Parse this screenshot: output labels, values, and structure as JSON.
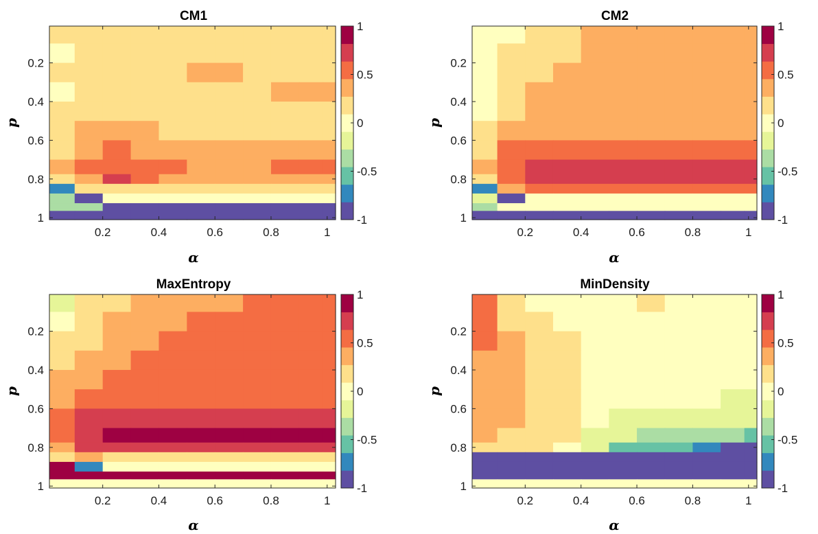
{
  "chart_data": [
    {
      "type": "heatmap",
      "title": "CM1",
      "xlabel": "α",
      "ylabel": "p",
      "xlim": [
        0.01,
        1.03
      ],
      "ylim": [
        0.01,
        1.01
      ],
      "y_reversed": true,
      "xticks": [
        0.2,
        0.4,
        0.6,
        0.8,
        1
      ],
      "xtick_labels": [
        "0.2",
        "0.4",
        "0.6",
        "0.8",
        "1"
      ],
      "yticks": [
        0.2,
        0.4,
        0.6,
        0.8,
        1
      ],
      "ytick_labels": [
        "0.2",
        "0.4",
        "0.6",
        "0.8",
        "1"
      ],
      "colorbar": {
        "range": [
          -1,
          1
        ],
        "ticks": [
          -1,
          -0.5,
          0,
          0.5,
          1
        ],
        "tick_labels": [
          "-1",
          "-0.5",
          "0",
          "0.5",
          "1"
        ]
      },
      "x": [
        0.05,
        0.15,
        0.25,
        0.35,
        0.45,
        0.55,
        0.65,
        0.75,
        0.85,
        0.95,
        1.02
      ],
      "y": [
        0.05,
        0.15,
        0.25,
        0.35,
        0.45,
        0.55,
        0.65,
        0.75,
        0.8,
        0.85,
        0.9,
        0.95,
        0.98
      ],
      "z": [
        [
          0.1,
          0.15,
          0.25,
          0.25,
          0.25,
          0.25,
          0.25,
          0.25,
          0.25,
          0.25,
          0.25
        ],
        [
          0.05,
          0.15,
          0.25,
          0.25,
          0.25,
          0.25,
          0.25,
          0.25,
          0.25,
          0.25,
          0.25
        ],
        [
          0.1,
          0.2,
          0.25,
          0.25,
          0.25,
          0.35,
          0.35,
          0.25,
          0.25,
          0.25,
          0.25
        ],
        [
          0.05,
          0.2,
          0.25,
          0.25,
          0.25,
          0.25,
          0.25,
          0.25,
          0.35,
          0.35,
          0.35
        ],
        [
          0.1,
          0.25,
          0.25,
          0.25,
          0.25,
          0.25,
          0.25,
          0.25,
          0.25,
          0.25,
          0.25
        ],
        [
          0.15,
          0.35,
          0.35,
          0.35,
          0.25,
          0.25,
          0.25,
          0.25,
          0.25,
          0.25,
          0.25
        ],
        [
          0.25,
          0.45,
          0.55,
          0.45,
          0.45,
          0.45,
          0.45,
          0.35,
          0.35,
          0.35,
          0.35
        ],
        [
          0.35,
          0.55,
          0.6,
          0.55,
          0.55,
          0.45,
          0.45,
          0.45,
          0.55,
          0.55,
          0.55
        ],
        [
          0.25,
          0.45,
          0.75,
          0.55,
          0.45,
          0.45,
          0.45,
          0.45,
          0.45,
          0.45,
          0.45
        ],
        [
          -0.65,
          0.25,
          0.25,
          0.25,
          0.25,
          0.25,
          0.25,
          0.25,
          0.25,
          0.25,
          0.25
        ],
        [
          -0.35,
          -0.85,
          0.05,
          0.05,
          0.05,
          0.05,
          0.05,
          0.05,
          0.05,
          0.05,
          0.05
        ],
        [
          -0.45,
          -0.35,
          -0.85,
          -0.85,
          -0.85,
          -0.85,
          -0.85,
          -0.85,
          -0.85,
          -0.85,
          -0.85
        ],
        [
          -0.85,
          -0.85,
          -0.85,
          -0.85,
          -0.85,
          -0.85,
          -0.85,
          -0.85,
          -0.85,
          -0.85,
          -0.85
        ]
      ]
    },
    {
      "type": "heatmap",
      "title": "CM2",
      "xlabel": "α",
      "ylabel": "p",
      "xlim": [
        0.01,
        1.03
      ],
      "ylim": [
        0.01,
        1.01
      ],
      "y_reversed": true,
      "xticks": [
        0.2,
        0.4,
        0.6,
        0.8,
        1
      ],
      "xtick_labels": [
        "0.2",
        "0.4",
        "0.6",
        "0.8",
        "1"
      ],
      "yticks": [
        0.2,
        0.4,
        0.6,
        0.8,
        1
      ],
      "ytick_labels": [
        "0.2",
        "0.4",
        "0.6",
        "0.8",
        "1"
      ],
      "colorbar": {
        "range": [
          -1,
          1
        ],
        "ticks": [
          -1,
          -0.5,
          0,
          0.5,
          1
        ],
        "tick_labels": [
          "-1",
          "-0.5",
          "0",
          "0.5",
          "1"
        ]
      },
      "x": [
        0.05,
        0.15,
        0.25,
        0.35,
        0.45,
        0.55,
        0.65,
        0.75,
        0.85,
        0.95,
        1.02
      ],
      "y": [
        0.05,
        0.15,
        0.25,
        0.35,
        0.45,
        0.55,
        0.65,
        0.75,
        0.8,
        0.85,
        0.9,
        0.95,
        0.98
      ],
      "z": [
        [
          -0.05,
          0.05,
          0.25,
          0.25,
          0.35,
          0.35,
          0.35,
          0.35,
          0.35,
          0.35,
          0.35
        ],
        [
          0.05,
          0.15,
          0.25,
          0.25,
          0.35,
          0.35,
          0.35,
          0.35,
          0.35,
          0.35,
          0.35
        ],
        [
          0.05,
          0.15,
          0.25,
          0.35,
          0.35,
          0.35,
          0.35,
          0.35,
          0.35,
          0.35,
          0.35
        ],
        [
          0.05,
          0.25,
          0.35,
          0.35,
          0.35,
          0.35,
          0.35,
          0.35,
          0.35,
          0.35,
          0.35
        ],
        [
          0.05,
          0.25,
          0.35,
          0.35,
          0.35,
          0.35,
          0.35,
          0.35,
          0.35,
          0.35,
          0.35
        ],
        [
          0.15,
          0.45,
          0.45,
          0.35,
          0.35,
          0.35,
          0.35,
          0.35,
          0.35,
          0.35,
          0.35
        ],
        [
          0.25,
          0.55,
          0.55,
          0.55,
          0.55,
          0.55,
          0.55,
          0.55,
          0.55,
          0.55,
          0.55
        ],
        [
          0.35,
          0.55,
          0.75,
          0.75,
          0.65,
          0.65,
          0.65,
          0.65,
          0.65,
          0.65,
          0.65
        ],
        [
          0.25,
          0.55,
          0.75,
          0.75,
          0.75,
          0.75,
          0.75,
          0.75,
          0.75,
          0.75,
          0.75
        ],
        [
          -0.75,
          0.45,
          0.55,
          0.55,
          0.55,
          0.55,
          0.55,
          0.55,
          0.55,
          0.55,
          0.55
        ],
        [
          -0.25,
          -0.85,
          0.05,
          0.05,
          0.05,
          0.05,
          0.05,
          0.05,
          0.05,
          0.05,
          0.05
        ],
        [
          -0.35,
          0.05,
          0.05,
          0.05,
          0.05,
          0.05,
          0.05,
          0.05,
          0.05,
          0.05,
          0.05
        ],
        [
          -0.85,
          -0.85,
          -0.85,
          -0.85,
          -0.85,
          -0.85,
          -0.85,
          -0.85,
          -0.85,
          -0.85,
          -0.85
        ]
      ]
    },
    {
      "type": "heatmap",
      "title": "MaxEntropy",
      "xlabel": "α",
      "ylabel": "p",
      "xlim": [
        0.01,
        1.03
      ],
      "ylim": [
        0.01,
        1.01
      ],
      "y_reversed": true,
      "xticks": [
        0.2,
        0.4,
        0.6,
        0.8,
        1
      ],
      "xtick_labels": [
        "0.2",
        "0.4",
        "0.6",
        "0.8",
        "1"
      ],
      "yticks": [
        0.2,
        0.4,
        0.6,
        0.8,
        1
      ],
      "ytick_labels": [
        "0.2",
        "0.4",
        "0.6",
        "0.8",
        "1"
      ],
      "colorbar": {
        "range": [
          -1,
          1
        ],
        "ticks": [
          -1,
          -0.5,
          0,
          0.5,
          1
        ],
        "tick_labels": [
          "-1",
          "-0.5",
          "0",
          "0.5",
          "1"
        ]
      },
      "x": [
        0.05,
        0.15,
        0.25,
        0.35,
        0.45,
        0.55,
        0.65,
        0.75,
        0.85,
        0.95,
        1.02
      ],
      "y": [
        0.05,
        0.15,
        0.25,
        0.35,
        0.45,
        0.55,
        0.65,
        0.75,
        0.8,
        0.85,
        0.9,
        0.95,
        0.98
      ],
      "z": [
        [
          -0.15,
          0.15,
          0.25,
          0.35,
          0.35,
          0.35,
          0.45,
          0.55,
          0.55,
          0.55,
          0.55
        ],
        [
          0.05,
          0.25,
          0.35,
          0.35,
          0.45,
          0.55,
          0.55,
          0.55,
          0.55,
          0.55,
          0.55
        ],
        [
          0.15,
          0.25,
          0.35,
          0.45,
          0.55,
          0.55,
          0.55,
          0.55,
          0.55,
          0.55,
          0.55
        ],
        [
          0.25,
          0.35,
          0.45,
          0.55,
          0.55,
          0.55,
          0.55,
          0.55,
          0.55,
          0.55,
          0.55
        ],
        [
          0.35,
          0.45,
          0.55,
          0.55,
          0.55,
          0.55,
          0.55,
          0.55,
          0.55,
          0.55,
          0.55
        ],
        [
          0.45,
          0.55,
          0.55,
          0.55,
          0.55,
          0.55,
          0.55,
          0.55,
          0.55,
          0.55,
          0.55
        ],
        [
          0.55,
          0.65,
          0.75,
          0.75,
          0.75,
          0.75,
          0.75,
          0.75,
          0.75,
          0.75,
          0.75
        ],
        [
          0.55,
          0.75,
          0.95,
          0.95,
          0.95,
          0.95,
          0.95,
          0.95,
          0.95,
          0.95,
          0.95
        ],
        [
          0.45,
          0.75,
          0.75,
          0.75,
          0.75,
          0.75,
          0.75,
          0.75,
          0.75,
          0.75,
          0.75
        ],
        [
          0.25,
          0.35,
          0.25,
          0.25,
          0.25,
          0.25,
          0.25,
          0.25,
          0.25,
          0.25,
          0.25
        ],
        [
          0.95,
          -0.75,
          0.05,
          0.05,
          0.05,
          0.05,
          0.05,
          0.05,
          0.05,
          0.05,
          0.05
        ],
        [
          0.95,
          0.95,
          0.95,
          0.95,
          0.95,
          0.95,
          0.95,
          0.95,
          0.95,
          0.95,
          0.95
        ],
        [
          0.05,
          0.05,
          0.05,
          0.05,
          0.05,
          0.05,
          0.05,
          0.05,
          0.05,
          0.05,
          0.05
        ]
      ]
    },
    {
      "type": "heatmap",
      "title": "MinDensity",
      "xlabel": "α",
      "ylabel": "p",
      "xlim": [
        0.01,
        1.03
      ],
      "ylim": [
        0.01,
        1.01
      ],
      "y_reversed": true,
      "xticks": [
        0.2,
        0.4,
        0.6,
        0.8,
        1
      ],
      "xtick_labels": [
        "0.2",
        "0.4",
        "0.6",
        "0.8",
        "1"
      ],
      "yticks": [
        0.2,
        0.4,
        0.6,
        0.8,
        1
      ],
      "ytick_labels": [
        "0.2",
        "0.4",
        "0.6",
        "0.8",
        "1"
      ],
      "colorbar": {
        "range": [
          -1,
          1
        ],
        "ticks": [
          -1,
          -0.5,
          0,
          0.5,
          1
        ],
        "tick_labels": [
          "-1",
          "-0.5",
          "0",
          "0.5",
          "1"
        ]
      },
      "x": [
        0.05,
        0.15,
        0.25,
        0.35,
        0.45,
        0.55,
        0.65,
        0.75,
        0.85,
        0.95,
        1.02
      ],
      "y": [
        0.05,
        0.15,
        0.25,
        0.35,
        0.45,
        0.55,
        0.65,
        0.75,
        0.8,
        0.85,
        0.9,
        0.95,
        0.98
      ],
      "z": [
        [
          0.55,
          0.25,
          0.05,
          0.05,
          0.05,
          0.05,
          0.15,
          0.05,
          0.05,
          0.05,
          0.05
        ],
        [
          0.55,
          0.25,
          0.15,
          0.05,
          0.05,
          0.05,
          0.05,
          0.05,
          0.05,
          0.05,
          0.05
        ],
        [
          0.55,
          0.35,
          0.25,
          0.15,
          0.05,
          0.05,
          0.05,
          0.05,
          0.05,
          0.05,
          0.05
        ],
        [
          0.45,
          0.35,
          0.25,
          0.15,
          0.05,
          0.05,
          0.05,
          0.05,
          0.05,
          0.05,
          0.05
        ],
        [
          0.35,
          0.35,
          0.25,
          0.15,
          0.05,
          0.05,
          0.05,
          0.05,
          0.05,
          0.05,
          0.05
        ],
        [
          0.35,
          0.35,
          0.25,
          0.15,
          0.05,
          0.05,
          0.05,
          0.05,
          0.05,
          -0.15,
          -0.15
        ],
        [
          0.35,
          0.35,
          0.25,
          0.15,
          0.05,
          -0.15,
          -0.15,
          -0.25,
          -0.25,
          -0.25,
          -0.25
        ],
        [
          0.35,
          0.25,
          0.25,
          0.15,
          -0.15,
          -0.25,
          -0.35,
          -0.35,
          -0.45,
          -0.45,
          -0.55
        ],
        [
          0.25,
          0.15,
          0.15,
          0.05,
          -0.25,
          -0.55,
          -0.55,
          -0.55,
          -0.65,
          -0.85,
          -0.85
        ],
        [
          -0.85,
          -0.85,
          -0.85,
          -0.85,
          -0.85,
          -0.85,
          -0.85,
          -0.85,
          -0.85,
          -0.85,
          -0.85
        ],
        [
          -0.85,
          -0.85,
          -0.85,
          -0.85,
          -0.85,
          -0.85,
          -0.85,
          -0.85,
          -0.85,
          -0.85,
          -0.85
        ],
        [
          -0.85,
          -0.85,
          -0.85,
          -0.85,
          -0.85,
          -0.85,
          -0.85,
          -0.85,
          -0.85,
          -0.85,
          -0.85
        ],
        [
          0.05,
          0.05,
          0.05,
          0.05,
          0.05,
          0.05,
          0.05,
          0.05,
          0.05,
          0.05,
          0.05
        ]
      ]
    }
  ],
  "colormap": [
    "#5e4fa2",
    "#3288bd",
    "#66c2a5",
    "#abdda4",
    "#e6f598",
    "#ffffbf",
    "#fee08b",
    "#fdae61",
    "#f46d43",
    "#d53e4f",
    "#9e0142"
  ]
}
